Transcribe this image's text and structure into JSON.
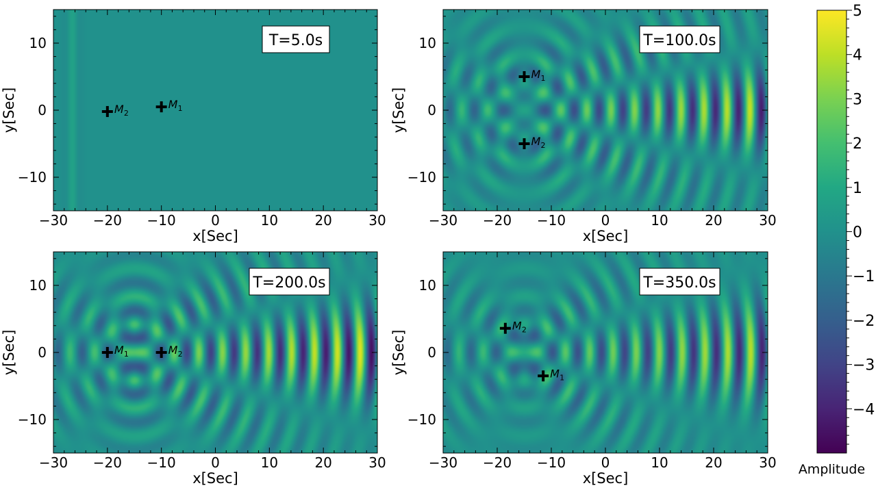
{
  "chart_data": [
    {
      "type": "heatmap",
      "time_label": "T=5.0s",
      "xlabel": "x[Sec]",
      "ylabel": "y[Sec]",
      "xlim": [
        -30,
        30
      ],
      "ylim": [
        -15,
        15
      ],
      "xticks": [
        -30,
        -20,
        -10,
        0,
        10,
        20,
        30
      ],
      "yticks": [
        -10,
        0,
        10
      ],
      "markers": [
        {
          "label": "M",
          "sub": "2",
          "x": -20,
          "y": -0.2
        },
        {
          "label": "M",
          "sub": "1",
          "x": -10,
          "y": 0.5
        }
      ],
      "wave": {
        "kind": "front",
        "front_x": -26.5,
        "amp": 0.7
      }
    },
    {
      "type": "heatmap",
      "time_label": "T=100.0s",
      "xlabel": "x[Sec]",
      "ylabel": "y[Sec]",
      "xlim": [
        -30,
        30
      ],
      "ylim": [
        -15,
        15
      ],
      "xticks": [
        -30,
        -20,
        -10,
        0,
        10,
        20,
        30
      ],
      "yticks": [
        -10,
        0,
        10
      ],
      "markers": [
        {
          "label": "M",
          "sub": "1",
          "x": -15,
          "y": 5
        },
        {
          "label": "M",
          "sub": "2",
          "x": -15,
          "y": -5
        }
      ],
      "wave": {
        "kind": "interference",
        "sources_y": [
          5,
          -5
        ],
        "source_x": -15,
        "max_amp": 4.2
      }
    },
    {
      "type": "heatmap",
      "time_label": "T=200.0s",
      "xlabel": "x[Sec]",
      "ylabel": "y[Sec]",
      "xlim": [
        -30,
        30
      ],
      "ylim": [
        -15,
        15
      ],
      "xticks": [
        -30,
        -20,
        -10,
        0,
        10,
        20,
        30
      ],
      "yticks": [
        -10,
        0,
        10
      ],
      "markers": [
        {
          "label": "M",
          "sub": "1",
          "x": -20,
          "y": 0
        },
        {
          "label": "M",
          "sub": "2",
          "x": -10,
          "y": 0
        }
      ],
      "wave": {
        "kind": "interference",
        "sources_y": [
          4,
          -4
        ],
        "source_x": -15,
        "max_amp": 4.6
      }
    },
    {
      "type": "heatmap",
      "time_label": "T=350.0s",
      "xlabel": "x[Sec]",
      "ylabel": "y[Sec]",
      "xlim": [
        -30,
        30
      ],
      "ylim": [
        -15,
        15
      ],
      "xticks": [
        -30,
        -20,
        -10,
        0,
        10,
        20,
        30
      ],
      "yticks": [
        -10,
        0,
        10
      ],
      "markers": [
        {
          "label": "M",
          "sub": "2",
          "x": -18.5,
          "y": 3.6
        },
        {
          "label": "M",
          "sub": "1",
          "x": -11.5,
          "y": -3.5
        }
      ],
      "wave": {
        "kind": "interference",
        "sources_y": [
          3.6,
          -3.5
        ],
        "source_x": -15,
        "max_amp": 4.0
      }
    }
  ],
  "colorbar": {
    "label": "Amplitude",
    "min": -5,
    "max": 5,
    "ticks": [
      5,
      4,
      3,
      2,
      1,
      0,
      -1,
      -2,
      -3,
      -4
    ],
    "colormap": "viridis",
    "stops": [
      "#440154",
      "#482475",
      "#414487",
      "#355f8d",
      "#2a788e",
      "#21918c",
      "#22a884",
      "#44bf70",
      "#7ad151",
      "#bddf26",
      "#fde725"
    ]
  }
}
